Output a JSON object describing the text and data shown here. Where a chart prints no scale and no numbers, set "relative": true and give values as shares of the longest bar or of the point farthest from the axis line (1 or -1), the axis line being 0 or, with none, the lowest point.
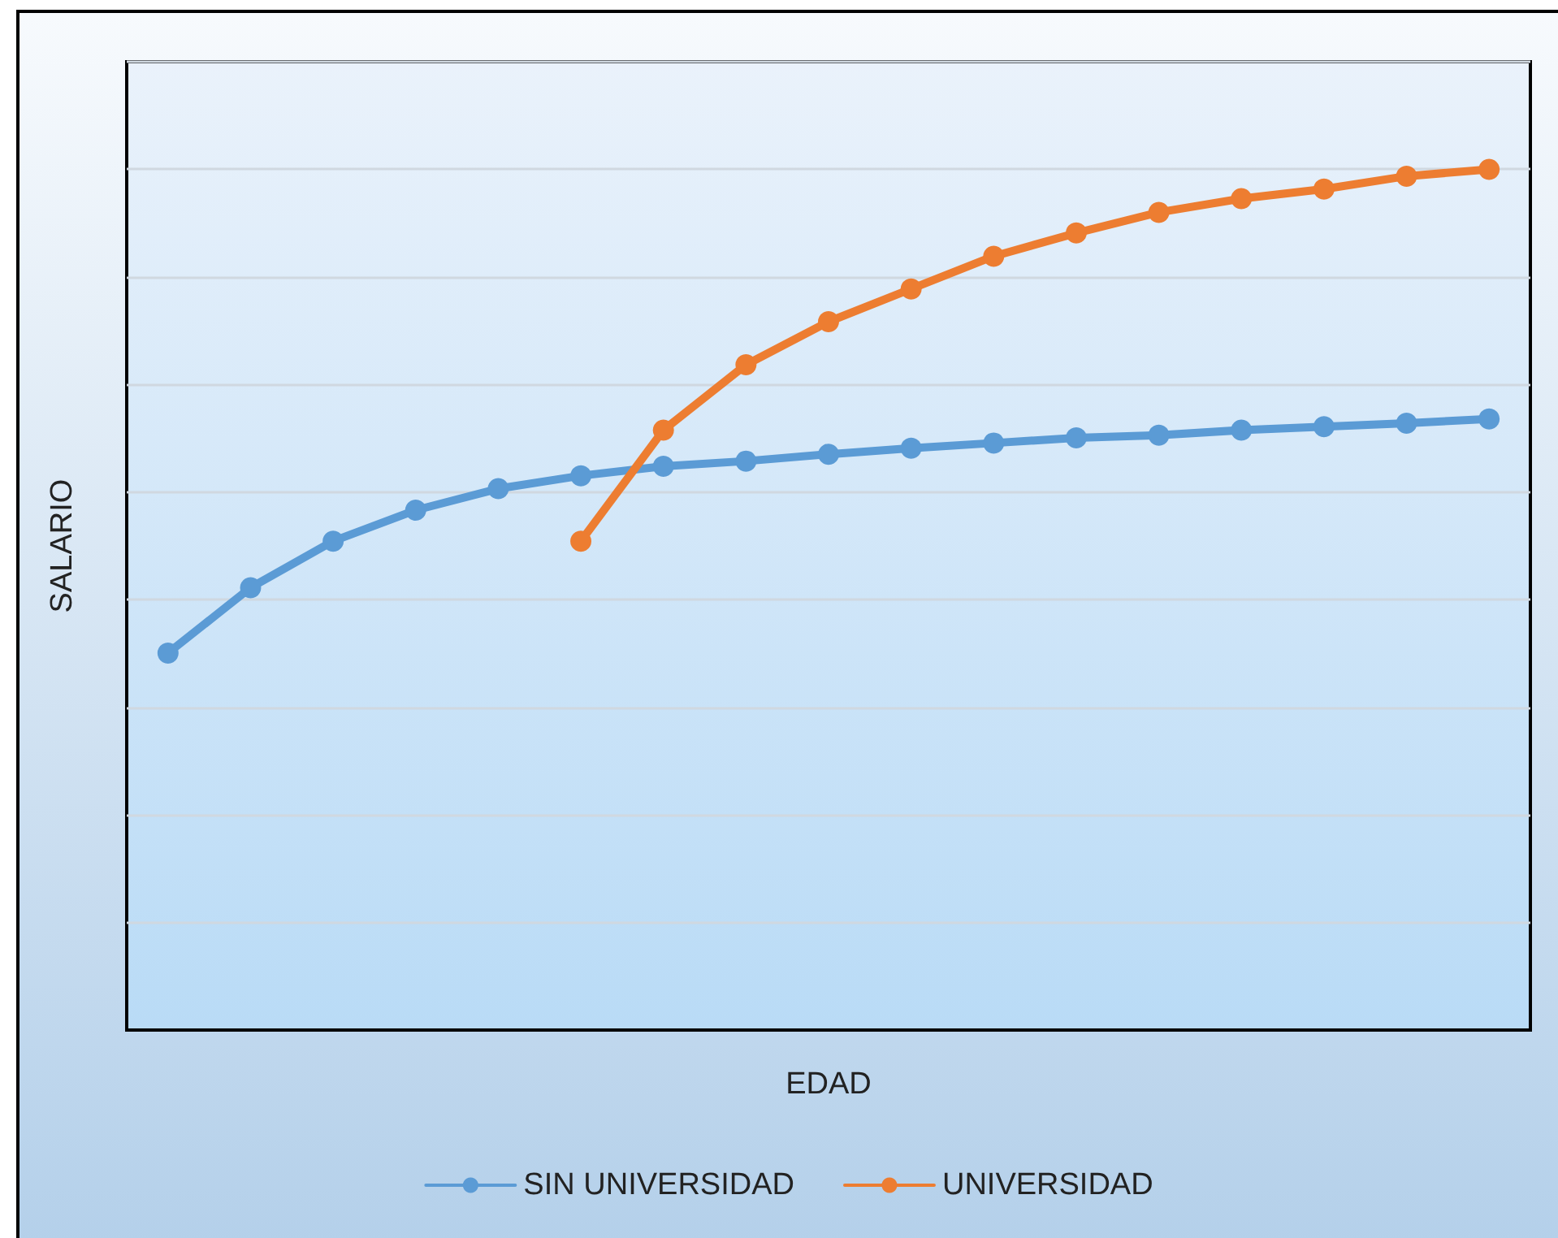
{
  "chart_data": {
    "type": "line",
    "xlabel": "EDAD",
    "ylabel": "SALARIO",
    "relative": true,
    "grid": "y",
    "legend": "bottom",
    "marker": "circle",
    "line_style": "solid",
    "categories": [
      null,
      null,
      null,
      null,
      null,
      null,
      null,
      null,
      null,
      null,
      null,
      null,
      null,
      null,
      null,
      null,
      null
    ],
    "series": [
      {
        "name": "SIN UNIVERSIDAD",
        "color": "#5b9bd5",
        "values": [
          0.438,
          0.514,
          0.568,
          0.604,
          0.629,
          0.644,
          0.655,
          0.661,
          0.669,
          0.676,
          0.682,
          0.688,
          0.691,
          0.697,
          0.701,
          0.705,
          0.71
        ]
      },
      {
        "name": "UNIVERSIDAD",
        "color": "#ed7d31",
        "values": [
          null,
          null,
          null,
          null,
          null,
          0.568,
          0.697,
          0.773,
          0.823,
          0.861,
          0.899,
          0.926,
          0.95,
          0.966,
          0.977,
          0.992,
          1
        ]
      }
    ]
  }
}
